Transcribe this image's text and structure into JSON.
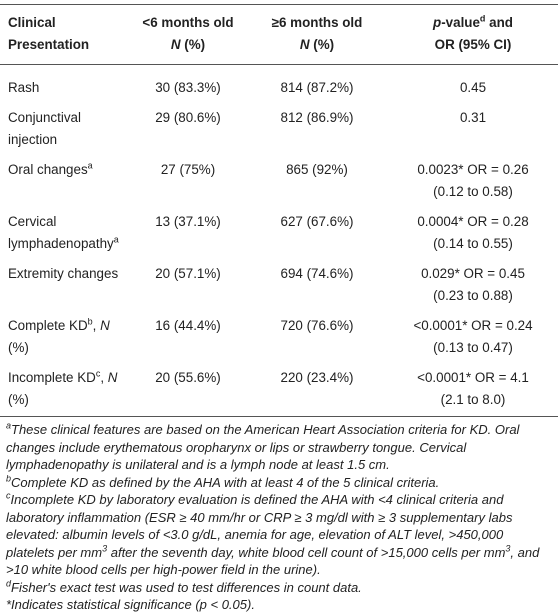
{
  "table": {
    "header": [
      [
        [
          {
            "text": "Clinical Presentation",
            "style": "bold"
          }
        ]
      ],
      [
        [
          {
            "text": "<6 months old",
            "style": "bold"
          }
        ],
        [
          {
            "text": "N",
            "style": "bold-italic"
          },
          {
            "text": " (%)",
            "style": "bold"
          }
        ]
      ],
      [
        [
          {
            "text": "≥6 months old",
            "style": "bold"
          }
        ],
        [
          {
            "text": "N",
            "style": "bold-italic"
          },
          {
            "text": " (%)",
            "style": "bold"
          }
        ]
      ],
      [
        [
          {
            "text": "p",
            "style": "bold-italic"
          },
          {
            "text": "-value",
            "style": "bold"
          },
          {
            "text": "d",
            "style": "bold-sup"
          },
          {
            "text": " and",
            "style": "bold"
          }
        ],
        [
          {
            "text": "OR (95% CI)",
            "style": "bold"
          }
        ]
      ]
    ],
    "rows": [
      [
        [
          [
            {
              "text": "Rash"
            }
          ]
        ],
        [
          [
            {
              "text": "30 (83.3%)"
            }
          ]
        ],
        [
          [
            {
              "text": "814 (87.2%)"
            }
          ]
        ],
        [
          [
            {
              "text": "0.45"
            }
          ]
        ]
      ],
      [
        [
          [
            {
              "text": "Conjunctival injection"
            }
          ]
        ],
        [
          [
            {
              "text": "29 (80.6%)"
            }
          ]
        ],
        [
          [
            {
              "text": "812 (86.9%)"
            }
          ]
        ],
        [
          [
            {
              "text": "0.31"
            }
          ]
        ]
      ],
      [
        [
          [
            {
              "text": "Oral changes"
            },
            {
              "text": "a",
              "style": "sup"
            }
          ]
        ],
        [
          [
            {
              "text": "27 (75%)"
            }
          ]
        ],
        [
          [
            {
              "text": "865 (92%)"
            }
          ]
        ],
        [
          [
            {
              "text": "0.0023* OR = 0.26"
            }
          ],
          [
            {
              "text": "(0.12 to 0.58)"
            }
          ]
        ]
      ],
      [
        [
          [
            {
              "text": "Cervical lymphadenopathy"
            },
            {
              "text": "a",
              "style": "sup"
            }
          ]
        ],
        [
          [
            {
              "text": "13 (37.1%)"
            }
          ]
        ],
        [
          [
            {
              "text": "627 (67.6%)"
            }
          ]
        ],
        [
          [
            {
              "text": "0.0004* OR = 0.28"
            }
          ],
          [
            {
              "text": "(0.14 to 0.55)"
            }
          ]
        ]
      ],
      [
        [
          [
            {
              "text": "Extremity changes"
            }
          ]
        ],
        [
          [
            {
              "text": "20 (57.1%)"
            }
          ]
        ],
        [
          [
            {
              "text": "694 (74.6%)"
            }
          ]
        ],
        [
          [
            {
              "text": "0.029* OR = 0.45"
            }
          ],
          [
            {
              "text": "(0.23 to 0.88)"
            }
          ]
        ]
      ],
      [
        [
          [
            {
              "text": "Complete KD"
            },
            {
              "text": "b",
              "style": "sup"
            },
            {
              "text": ", "
            },
            {
              "text": "N",
              "style": "italic"
            },
            {
              "text": " (%)"
            }
          ]
        ],
        [
          [
            {
              "text": "16 (44.4%)"
            }
          ]
        ],
        [
          [
            {
              "text": "720 (76.6%)"
            }
          ]
        ],
        [
          [
            {
              "text": "<0.0001* OR = 0.24"
            }
          ],
          [
            {
              "text": "(0.13 to 0.47)"
            }
          ]
        ]
      ],
      [
        [
          [
            {
              "text": "Incomplete KD"
            },
            {
              "text": "c",
              "style": "sup"
            },
            {
              "text": ", "
            },
            {
              "text": "N",
              "style": "italic"
            },
            {
              "text": " (%)"
            }
          ]
        ],
        [
          [
            {
              "text": "20 (55.6%)"
            }
          ]
        ],
        [
          [
            {
              "text": "220 (23.4%)"
            }
          ]
        ],
        [
          [
            {
              "text": "<0.0001* OR = 4.1"
            }
          ],
          [
            {
              "text": "(2.1 to 8.0)"
            }
          ]
        ]
      ]
    ]
  },
  "footnotes": [
    [
      {
        "text": "a",
        "style": "italic-sup"
      },
      {
        "text": "These clinical features are based on the American Heart Association criteria for KD. Oral changes include erythematous oropharynx or lips or strawberry tongue. Cervical lymphadenopathy is unilateral and is a lymph node at least 1.5 cm.",
        "style": "italic"
      }
    ],
    [
      {
        "text": "b",
        "style": "italic-sup"
      },
      {
        "text": "Complete KD as defined by the AHA with at least 4 of the 5 clinical criteria.",
        "style": "italic"
      }
    ],
    [
      {
        "text": "c",
        "style": "italic-sup"
      },
      {
        "text": "Incomplete KD by laboratory evaluation is defined the AHA with <4 clinical criteria and laboratory inflammation (ESR ≥ 40 mm/hr or CRP ≥ 3 mg/dl with ≥ 3 supplementary labs elevated: albumin levels of <3.0 g/dL, anemia for age, elevation of ALT level, >450,000 platelets per mm",
        "style": "italic"
      },
      {
        "text": "3",
        "style": "italic-sup"
      },
      {
        "text": " after the seventh day, white blood cell count of >15,000 cells per mm",
        "style": "italic"
      },
      {
        "text": "3",
        "style": "italic-sup"
      },
      {
        "text": ", and >10 white blood cells per high-power field in the urine).",
        "style": "italic"
      }
    ],
    [
      {
        "text": "d",
        "style": "italic-sup"
      },
      {
        "text": "Fisher's exact test was used to test differences in count data.",
        "style": "italic"
      }
    ],
    [
      {
        "text": "*Indicates statistical significance (",
        "style": "italic"
      },
      {
        "text": "p",
        "style": "italic"
      },
      {
        "text": " < 0.05).",
        "style": "italic"
      }
    ]
  ]
}
